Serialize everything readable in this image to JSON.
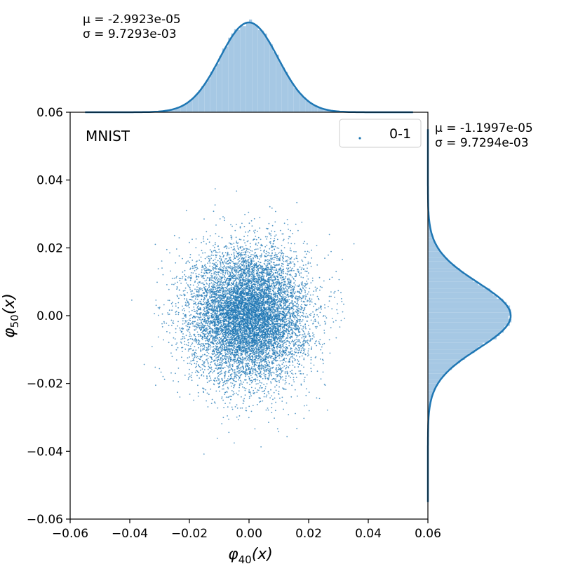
{
  "chart_data": {
    "type": "scatter",
    "title": "",
    "annotation": "MNIST",
    "xlabel": "φ40(x)",
    "ylabel": "φ50(x)",
    "xlim": [
      -0.06,
      0.06
    ],
    "ylim": [
      -0.06,
      0.06
    ],
    "xticks": [
      "−0.06",
      "−0.04",
      "−0.02",
      "0.00",
      "0.02",
      "0.04",
      "0.06"
    ],
    "yticks": [
      "−0.06",
      "−0.04",
      "−0.02",
      "0.00",
      "0.02",
      "0.04",
      "0.06"
    ],
    "grid": false,
    "legend": {
      "position": "top-right",
      "entries": [
        "0-1"
      ]
    },
    "point_color": "#1f77b4",
    "hist_color": "#a6c8e4",
    "series": [
      {
        "name": "0-1",
        "distribution": "bivariate normal",
        "n_points_approx": 10000,
        "x_mean": -2.9923e-05,
        "x_std": 0.0097293,
        "y_mean": -1.1997e-05,
        "y_std": 0.0097294
      }
    ],
    "marginals": {
      "top": {
        "mu_text": "μ = -2.9923e-05",
        "sigma_text": "σ = 9.7293e-03",
        "mean": -2.9923e-05,
        "std": 0.0097293,
        "range": [
          -0.055,
          0.055
        ]
      },
      "right": {
        "mu_text": "μ = -1.1997e-05",
        "sigma_text": "σ = 9.7294e-03",
        "mean": -1.1997e-05,
        "std": 0.0097294,
        "range": [
          -0.055,
          0.055
        ]
      }
    }
  }
}
